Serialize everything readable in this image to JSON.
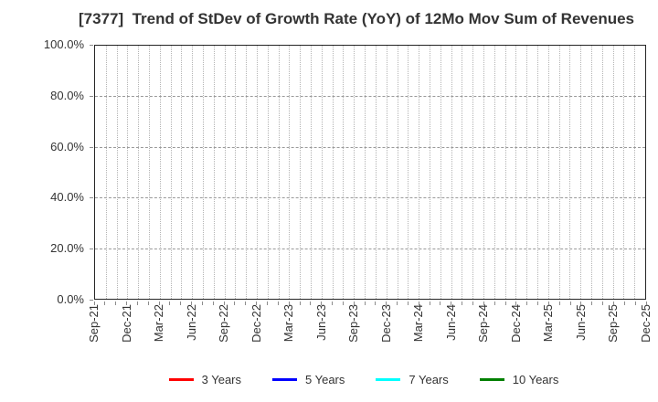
{
  "title": "[7377]  Trend of StDev of Growth Rate (YoY) of 12Mo Mov Sum of Revenues",
  "colors": {
    "background": "#ffffff",
    "frame": "#262626",
    "grid_vertical": "#b3b3b3",
    "grid_horizontal": "#999999",
    "tick": "#8c8c8c",
    "text": "#333333"
  },
  "chart_data": {
    "type": "line",
    "title": "[7377]  Trend of StDev of Growth Rate (YoY) of 12Mo Mov Sum of Revenues",
    "xlabel": "",
    "ylabel": "",
    "ylim": [
      0,
      100
    ],
    "y_ticks": [
      0,
      20,
      40,
      60,
      80,
      100
    ],
    "y_tick_labels": [
      "0.0%",
      "20.0%",
      "40.0%",
      "60.0%",
      "80.0%",
      "100.0%"
    ],
    "x_tick_labels": [
      "Sep-21",
      "Dec-21",
      "Mar-22",
      "Jun-22",
      "Sep-22",
      "Dec-22",
      "Mar-23",
      "Jun-23",
      "Sep-23",
      "Dec-23",
      "Mar-24",
      "Jun-24",
      "Sep-24",
      "Dec-24",
      "Mar-25",
      "Jun-25",
      "Sep-25",
      "Dec-25"
    ],
    "x_months_total": 52,
    "x_label_every_n_months": 3,
    "grid": "on",
    "grid_vertical_frequency": "monthly-dotted",
    "grid_horizontal_frequency": "20pct-dashed",
    "legend_position": "bottom-center",
    "series": [
      {
        "name": "3 Years",
        "color": "#ff0000",
        "values": []
      },
      {
        "name": "5 Years",
        "color": "#0000ff",
        "values": []
      },
      {
        "name": "7 Years",
        "color": "#00ffff",
        "values": []
      },
      {
        "name": "10 Years",
        "color": "#008000",
        "values": []
      }
    ],
    "plotted_data_visible": false
  }
}
